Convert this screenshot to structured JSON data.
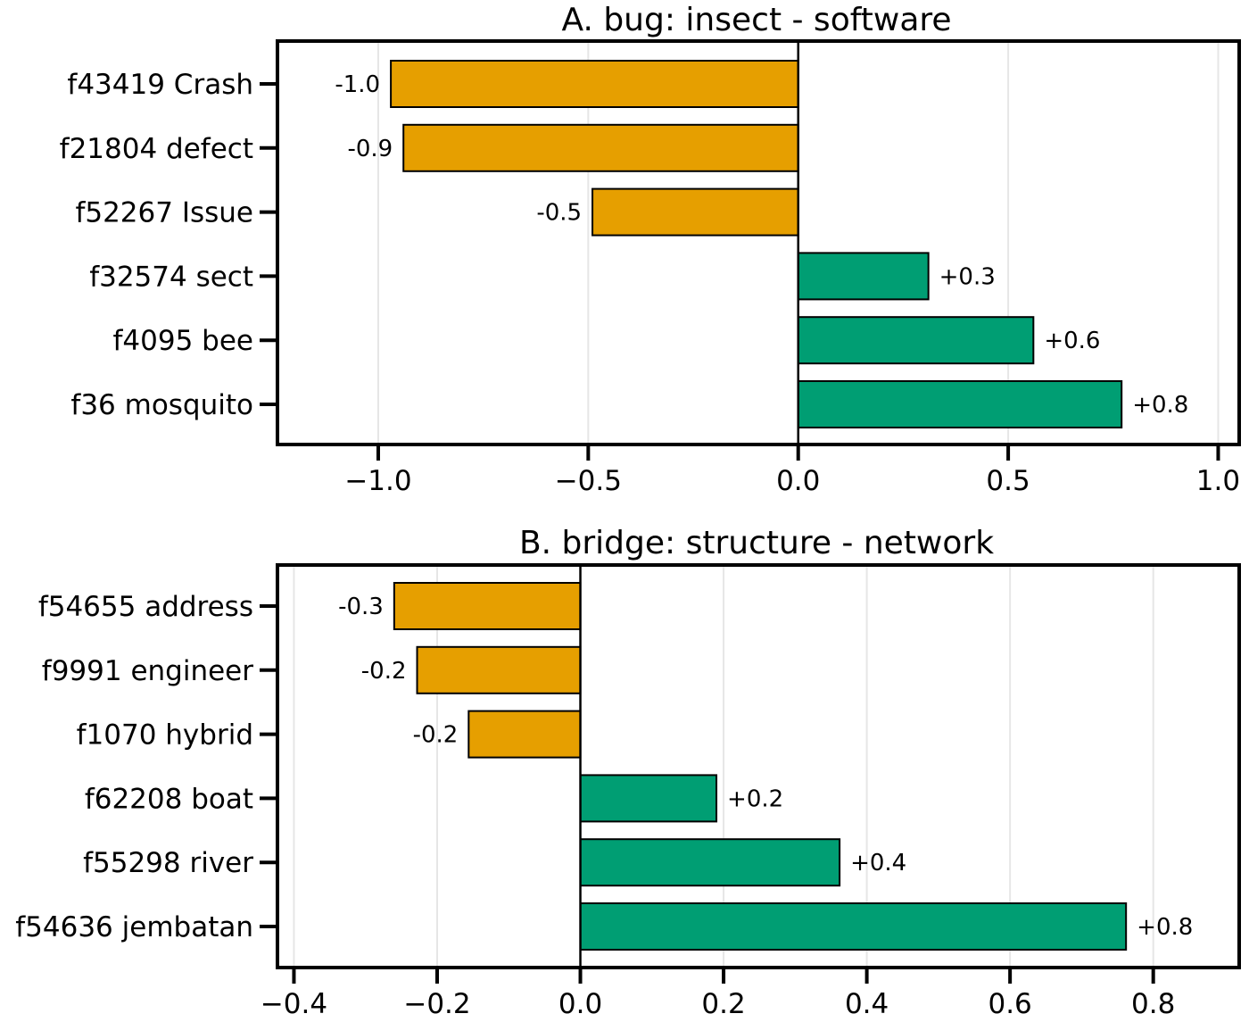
{
  "colors": {
    "negative": "#E69F00",
    "positive": "#009E73",
    "grid": "#e6e6e6",
    "frame": "#000000"
  },
  "chart_data": [
    {
      "type": "bar",
      "orientation": "horizontal",
      "title": "A. bug: insect - software",
      "categories": [
        "f43419 Crash",
        "f21804 defect",
        "f52267 Issue",
        "f32574 sect",
        "f4095 bee",
        "f36 mosquito"
      ],
      "values": [
        -0.97,
        -0.94,
        -0.49,
        0.31,
        0.56,
        0.77
      ],
      "value_labels": [
        "-1.0",
        "-0.9",
        "-0.5",
        "+0.3",
        "+0.6",
        "+0.8"
      ],
      "xlim": [
        -1.24,
        1.05
      ],
      "xticks": [
        -1.0,
        -0.5,
        0.0,
        0.5,
        1.0
      ],
      "xtick_labels": [
        "−1.0",
        "−0.5",
        "0.0",
        "0.5",
        "1.0"
      ],
      "grid": "vertical"
    },
    {
      "type": "bar",
      "orientation": "horizontal",
      "title": "B. bridge: structure - network",
      "categories": [
        "f54655 address",
        "f9991 engineer",
        "f1070 hybrid",
        "f62208 boat",
        "f55298 river",
        "f54636 jembatan"
      ],
      "values": [
        -0.26,
        -0.228,
        -0.156,
        0.19,
        0.362,
        0.762
      ],
      "value_labels": [
        "-0.3",
        "-0.2",
        "-0.2",
        "+0.2",
        "+0.4",
        "+0.8"
      ],
      "xlim": [
        -0.423,
        0.92
      ],
      "xticks": [
        -0.4,
        -0.2,
        0.0,
        0.2,
        0.4,
        0.6,
        0.8
      ],
      "xtick_labels": [
        "−0.4",
        "−0.2",
        "0.0",
        "0.2",
        "0.4",
        "0.6",
        "0.8"
      ],
      "grid": "vertical"
    }
  ]
}
